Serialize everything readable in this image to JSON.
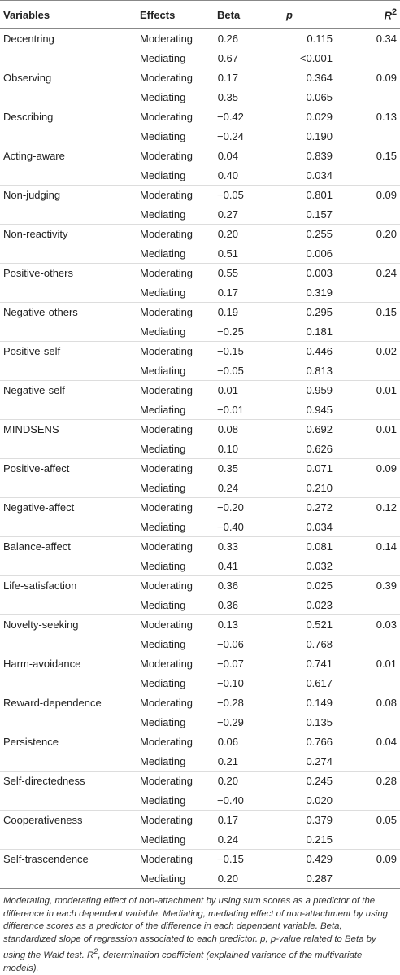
{
  "table": {
    "header": {
      "variables": "Variables",
      "effects": "Effects",
      "beta": "Beta",
      "p": "p",
      "r2": {
        "base": "R",
        "sup": "2"
      }
    },
    "groups": [
      {
        "variable": "Decentring",
        "r2": "0.34",
        "rows": [
          [
            "Moderating",
            "0.26",
            "0.115"
          ],
          [
            "Mediating",
            "0.67",
            "<0.001"
          ]
        ]
      },
      {
        "variable": "Observing",
        "r2": "0.09",
        "rows": [
          [
            "Moderating",
            "0.17",
            "0.364"
          ],
          [
            "Mediating",
            "0.35",
            "0.065"
          ]
        ]
      },
      {
        "variable": "Describing",
        "r2": "0.13",
        "rows": [
          [
            "Moderating",
            "−0.42",
            "0.029"
          ],
          [
            "Mediating",
            "−0.24",
            "0.190"
          ]
        ]
      },
      {
        "variable": "Acting-aware",
        "r2": "0.15",
        "rows": [
          [
            "Moderating",
            "0.04",
            "0.839"
          ],
          [
            "Mediating",
            "0.40",
            "0.034"
          ]
        ]
      },
      {
        "variable": "Non-judging",
        "r2": "0.09",
        "rows": [
          [
            "Moderating",
            "−0.05",
            "0.801"
          ],
          [
            "Mediating",
            "0.27",
            "0.157"
          ]
        ]
      },
      {
        "variable": "Non-reactivity",
        "r2": "0.20",
        "rows": [
          [
            "Moderating",
            "0.20",
            "0.255"
          ],
          [
            "Mediating",
            "0.51",
            "0.006"
          ]
        ]
      },
      {
        "variable": "Positive-others",
        "r2": "0.24",
        "rows": [
          [
            "Moderating",
            "0.55",
            "0.003"
          ],
          [
            "Mediating",
            "0.17",
            "0.319"
          ]
        ]
      },
      {
        "variable": "Negative-others",
        "r2": "0.15",
        "rows": [
          [
            "Moderating",
            "0.19",
            "0.295"
          ],
          [
            "Mediating",
            "−0.25",
            "0.181"
          ]
        ]
      },
      {
        "variable": "Positive-self",
        "r2": "0.02",
        "rows": [
          [
            "Moderating",
            "−0.15",
            "0.446"
          ],
          [
            "Mediating",
            "−0.05",
            "0.813"
          ]
        ]
      },
      {
        "variable": "Negative-self",
        "r2": "0.01",
        "rows": [
          [
            "Moderating",
            "0.01",
            "0.959"
          ],
          [
            "Mediating",
            "−0.01",
            "0.945"
          ]
        ]
      },
      {
        "variable": "MINDSENS",
        "r2": "0.01",
        "rows": [
          [
            "Moderating",
            "0.08",
            "0.692"
          ],
          [
            "Mediating",
            "0.10",
            "0.626"
          ]
        ]
      },
      {
        "variable": "Positive-affect",
        "r2": "0.09",
        "rows": [
          [
            "Moderating",
            "0.35",
            "0.071"
          ],
          [
            "Mediating",
            "0.24",
            "0.210"
          ]
        ]
      },
      {
        "variable": "Negative-affect",
        "r2": "0.12",
        "rows": [
          [
            "Moderating",
            "−0.20",
            "0.272"
          ],
          [
            "Mediating",
            "−0.40",
            "0.034"
          ]
        ]
      },
      {
        "variable": "Balance-affect",
        "r2": "0.14",
        "rows": [
          [
            "Moderating",
            "0.33",
            "0.081"
          ],
          [
            "Mediating",
            "0.41",
            "0.032"
          ]
        ]
      },
      {
        "variable": "Life-satisfaction",
        "r2": "0.39",
        "rows": [
          [
            "Moderating",
            "0.36",
            "0.025"
          ],
          [
            "Mediating",
            "0.36",
            "0.023"
          ]
        ]
      },
      {
        "variable": "Novelty-seeking",
        "r2": "0.03",
        "rows": [
          [
            "Moderating",
            "0.13",
            "0.521"
          ],
          [
            "Mediating",
            "−0.06",
            "0.768"
          ]
        ]
      },
      {
        "variable": "Harm-avoidance",
        "r2": "0.01",
        "rows": [
          [
            "Moderating",
            "−0.07",
            "0.741"
          ],
          [
            "Mediating",
            "−0.10",
            "0.617"
          ]
        ]
      },
      {
        "variable": "Reward-dependence",
        "r2": "0.08",
        "rows": [
          [
            "Moderating",
            "−0.28",
            "0.149"
          ],
          [
            "Mediating",
            "−0.29",
            "0.135"
          ]
        ]
      },
      {
        "variable": "Persistence",
        "r2": "0.04",
        "rows": [
          [
            "Moderating",
            "0.06",
            "0.766"
          ],
          [
            "Mediating",
            "0.21",
            "0.274"
          ]
        ]
      },
      {
        "variable": "Self-directedness",
        "r2": "0.28",
        "rows": [
          [
            "Moderating",
            "0.20",
            "0.245"
          ],
          [
            "Mediating",
            "−0.40",
            "0.020"
          ]
        ]
      },
      {
        "variable": "Cooperativeness",
        "r2": "0.05",
        "rows": [
          [
            "Moderating",
            "0.17",
            "0.379"
          ],
          [
            "Mediating",
            "0.24",
            "0.215"
          ]
        ]
      },
      {
        "variable": "Self-trascendence",
        "r2": "0.09",
        "rows": [
          [
            "Moderating",
            "−0.15",
            "0.429"
          ],
          [
            "Mediating",
            "0.20",
            "0.287"
          ]
        ]
      }
    ]
  },
  "footnote": {
    "text": "Moderating, moderating effect of non-attachment by using sum scores as a predictor of the difference in each dependent variable. Mediating, mediating effect of non-attachment by using difference scores as a predictor of the difference in each dependent variable. Beta, standardized slope of regression associated to each predictor. p, p-value related to Beta by using the Wald test. ",
    "r": "R",
    "sup": "2",
    "rest": ", determination coefficient (explained variance of the multivariate models)."
  }
}
